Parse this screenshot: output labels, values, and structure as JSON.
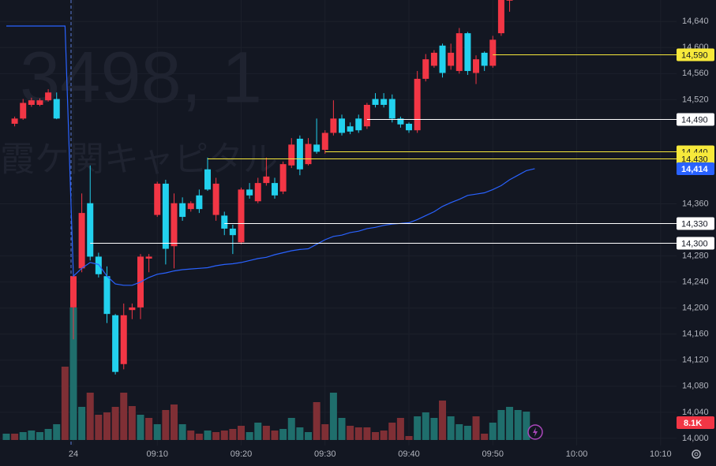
{
  "chart_data": {
    "type": "candlestick",
    "watermark": [
      "3498, 1",
      "霞ケ関キャピタル"
    ],
    "ylim": [
      13989,
      14673
    ],
    "yticks": [
      {
        "value": 14000,
        "label": "14,000"
      },
      {
        "value": 14040,
        "label": "14,040"
      },
      {
        "value": 14080,
        "label": "14,080"
      },
      {
        "value": 14120,
        "label": "14,120"
      },
      {
        "value": 14160,
        "label": "14,160"
      },
      {
        "value": 14200,
        "label": "14,200"
      },
      {
        "value": 14240,
        "label": "14,240"
      },
      {
        "value": 14280,
        "label": "14,280"
      },
      {
        "value": 14360,
        "label": "14,360"
      },
      {
        "value": 14520,
        "label": "14,520"
      },
      {
        "value": 14560,
        "label": "14,560"
      },
      {
        "value": 14600,
        "label": "14,600"
      },
      {
        "value": 14640,
        "label": "14,640"
      }
    ],
    "xlim": [
      -8.75,
      71.9
    ],
    "xticks": [
      {
        "value": 0,
        "label": "24"
      },
      {
        "value": 10,
        "label": "09:10"
      },
      {
        "value": 20,
        "label": "09:20"
      },
      {
        "value": 30,
        "label": "09:30"
      },
      {
        "value": 40,
        "label": "09:40"
      },
      {
        "value": 50,
        "label": "09:50"
      },
      {
        "value": 60,
        "label": "10:00"
      },
      {
        "value": 70,
        "label": "10:10"
      }
    ],
    "grid": true,
    "up_color": "#f23645",
    "down_color": "#22d1ee",
    "x": [
      -7,
      -6,
      -5,
      -4,
      -3,
      -2,
      0,
      1,
      2,
      3,
      4,
      5,
      6,
      7,
      8,
      9,
      10,
      11,
      12,
      13,
      14,
      15,
      16,
      17,
      18,
      19,
      20,
      21,
      22,
      23,
      24,
      25,
      26,
      27,
      28,
      29,
      30,
      31,
      32,
      33,
      34,
      35,
      36,
      37,
      38,
      39,
      40,
      41,
      42,
      43,
      44,
      45,
      46,
      47,
      48,
      49,
      50,
      51,
      52
    ],
    "open": [
      14483,
      14491,
      14512,
      14512,
      14519,
      14521,
      14201,
      14261,
      14361,
      14279,
      14249,
      14189,
      14114,
      14197,
      14201,
      14276,
      14343,
      14391,
      14295,
      14361,
      14352,
      14373,
      14413,
      14343,
      14342,
      14322,
      14301,
      14382,
      14364,
      14392,
      14392,
      14379,
      14419,
      14460,
      14421,
      14451,
      14443,
      14469,
      14491,
      14479,
      14491,
      14479,
      14521,
      14521,
      14521,
      14491,
      14483,
      14473,
      14552,
      14572,
      14603,
      14572,
      14564,
      14622,
      14561,
      14592,
      14572,
      14622,
      14672
    ],
    "high": [
      14494,
      14521,
      14523,
      14522,
      14536,
      14531,
      14252,
      14376,
      14419,
      14285,
      14264,
      14191,
      14207,
      14207,
      14283,
      14283,
      14394,
      14397,
      14376,
      14370,
      14364,
      14382,
      14431,
      14400,
      14348,
      14328,
      14385,
      14392,
      14400,
      14431,
      14400,
      14425,
      14461,
      14465,
      14461,
      14491,
      14473,
      14519,
      14497,
      14485,
      14497,
      14515,
      14530,
      14530,
      14528,
      14494,
      14485,
      14564,
      14590,
      14596,
      14606,
      14606,
      14630,
      14624,
      14588,
      14594,
      14618,
      14690,
      14685
    ],
    "low": [
      14479,
      14489,
      14509,
      14510,
      14517,
      14490,
      14152,
      14255,
      14273,
      14247,
      14177,
      14098,
      14106,
      14183,
      14183,
      14255,
      14340,
      14267,
      14261,
      14334,
      14348,
      14346,
      14380,
      14334,
      14312,
      14283,
      14298,
      14368,
      14361,
      14388,
      14368,
      14375,
      14415,
      14404,
      14419,
      14437,
      14437,
      14465,
      14465,
      14467,
      14469,
      14475,
      14508,
      14508,
      14485,
      14477,
      14469,
      14469,
      14548,
      14569,
      14554,
      14566,
      14560,
      14558,
      14544,
      14564,
      14569,
      14618,
      14655
    ],
    "close": [
      14491,
      14515,
      14519,
      14519,
      14531,
      14491,
      14249,
      14346,
      14279,
      14252,
      14191,
      14102,
      14189,
      14201,
      14279,
      14279,
      14391,
      14291,
      14361,
      14340,
      14361,
      14352,
      14382,
      14391,
      14322,
      14312,
      14382,
      14373,
      14392,
      14402,
      14373,
      14421,
      14451,
      14413,
      14452,
      14440,
      14469,
      14491,
      14469,
      14471,
      14473,
      14512,
      14512,
      14512,
      14491,
      14482,
      14473,
      14552,
      14582,
      14592,
      14561,
      14592,
      14622,
      14564,
      14582,
      14572,
      14612,
      14680,
      14676
    ],
    "line": {
      "color": "#2962ff",
      "last_label": "14,414",
      "x": [
        -8,
        -7,
        -6,
        -5,
        -4,
        -3,
        -2,
        -1,
        0,
        1,
        2,
        3,
        4,
        5,
        6,
        7,
        8,
        9,
        10,
        11,
        12,
        13,
        14,
        15,
        16,
        17,
        18,
        19,
        20,
        21,
        22,
        23,
        24,
        25,
        26,
        27,
        28,
        29,
        30,
        31,
        32,
        33,
        34,
        35,
        36,
        37,
        38,
        39,
        40,
        41,
        42,
        43,
        44,
        45,
        46,
        47,
        48,
        49,
        50,
        51,
        52,
        53,
        54,
        55
      ],
      "values": [
        14633,
        14633,
        14633,
        14633,
        14633,
        14633,
        14633,
        14633,
        14249,
        14261,
        14270,
        14267,
        14249,
        14237,
        14235,
        14235,
        14240,
        14247,
        14252,
        14254,
        14257,
        14259,
        14260,
        14261,
        14262,
        14265,
        14267,
        14268,
        14270,
        14273,
        14276,
        14278,
        14282,
        14285,
        14288,
        14290,
        14291,
        14298,
        14305,
        14310,
        14312,
        14316,
        14318,
        14322,
        14324,
        14327,
        14329,
        14330,
        14331,
        14336,
        14342,
        14348,
        14356,
        14362,
        14367,
        14373,
        14375,
        14377,
        14382,
        14388,
        14397,
        14404,
        14411,
        14414
      ]
    },
    "volume": {
      "last_label": "8.1K",
      "label_color": "#f23645",
      "x": [
        -8,
        -7,
        -6,
        -5,
        -4,
        -3,
        -2,
        -1,
        0,
        1,
        2,
        3,
        4,
        5,
        6,
        7,
        8,
        9,
        10,
        11,
        12,
        13,
        14,
        15,
        16,
        17,
        18,
        19,
        20,
        21,
        22,
        23,
        24,
        25,
        26,
        27,
        28,
        29,
        30,
        31,
        32,
        33,
        34,
        35,
        36,
        37,
        38,
        39,
        40,
        41,
        42,
        43,
        44,
        45,
        46,
        47,
        48,
        49,
        50,
        51,
        52,
        53,
        54
      ],
      "values": [
        1800,
        1800,
        2250,
        2700,
        2250,
        3150,
        4500,
        20925,
        37800,
        9450,
        13500,
        7200,
        7875,
        9450,
        13500,
        9675,
        7200,
        6300,
        4500,
        8550,
        10125,
        4500,
        2700,
        1800,
        2700,
        2250,
        2700,
        3150,
        4050,
        2250,
        4950,
        4050,
        2700,
        3150,
        6300,
        3600,
        2250,
        10800,
        4500,
        13500,
        6300,
        4050,
        3600,
        3600,
        2250,
        2700,
        4950,
        6300,
        1125,
        6750,
        7875,
        6300,
        11250,
        6750,
        4500,
        4050,
        6750,
        1800,
        4950,
        8550,
        9450,
        8550,
        8100
      ],
      "colors": [
        "#1f6e6c",
        "#7f2f35",
        "#1f6e6c",
        "#1f6e6c",
        "#1f6e6c",
        "#1f6e6c",
        "#1f6e6c",
        "#7f2f35",
        "#1f6e6c",
        "#1f6e6c",
        "#7f2f35",
        "#7f2f35",
        "#7f2f35",
        "#7f2f35",
        "#7f2f35",
        "#7f2f35",
        "#1f6e6c",
        "#7f2f35",
        "#1f6e6c",
        "#7f2f35",
        "#7f2f35",
        "#1f6e6c",
        "#7f2f35",
        "#7f2f35",
        "#1f6e6c",
        "#7f2f35",
        "#7f2f35",
        "#7f2f35",
        "#7f2f35",
        "#1f6e6c",
        "#1f6e6c",
        "#7f2f35",
        "#7f2f35",
        "#1f6e6c",
        "#1f6e6c",
        "#1f6e6c",
        "#1f6e6c",
        "#7f2f35",
        "#7f2f35",
        "#1f6e6c",
        "#1f6e6c",
        "#7f2f35",
        "#7f2f35",
        "#7f2f35",
        "#7f2f35",
        "#7f2f35",
        "#7f2f35",
        "#7f2f35",
        "#7f2f35",
        "#1f6e6c",
        "#1f6e6c",
        "#1f6e6c",
        "#7f2f35",
        "#1f6e6c",
        "#1f6e6c",
        "#1f6e6c",
        "#7f2f35",
        "#7f2f35",
        "#1f6e6c",
        "#1f6e6c",
        "#1f6e6c",
        "#1f6e6c",
        "#1f6e6c"
      ]
    },
    "levels": [
      {
        "value": 14590,
        "label": "14,590",
        "color": "#f7e93b",
        "start": 50
      },
      {
        "value": 14490,
        "label": "14,490",
        "color": "#ffffff",
        "start": 35
      },
      {
        "value": 14440,
        "label": "14,440",
        "color": "#f7e93b",
        "start": 30
      },
      {
        "value": 14430,
        "label": "14,430",
        "color": "#f7e93b",
        "start": 16
      },
      {
        "value": 14330,
        "label": "14,330",
        "color": "#ffffff",
        "start": 18
      },
      {
        "value": 14300,
        "label": "14,300",
        "color": "#ffffff",
        "start": 2
      }
    ]
  }
}
